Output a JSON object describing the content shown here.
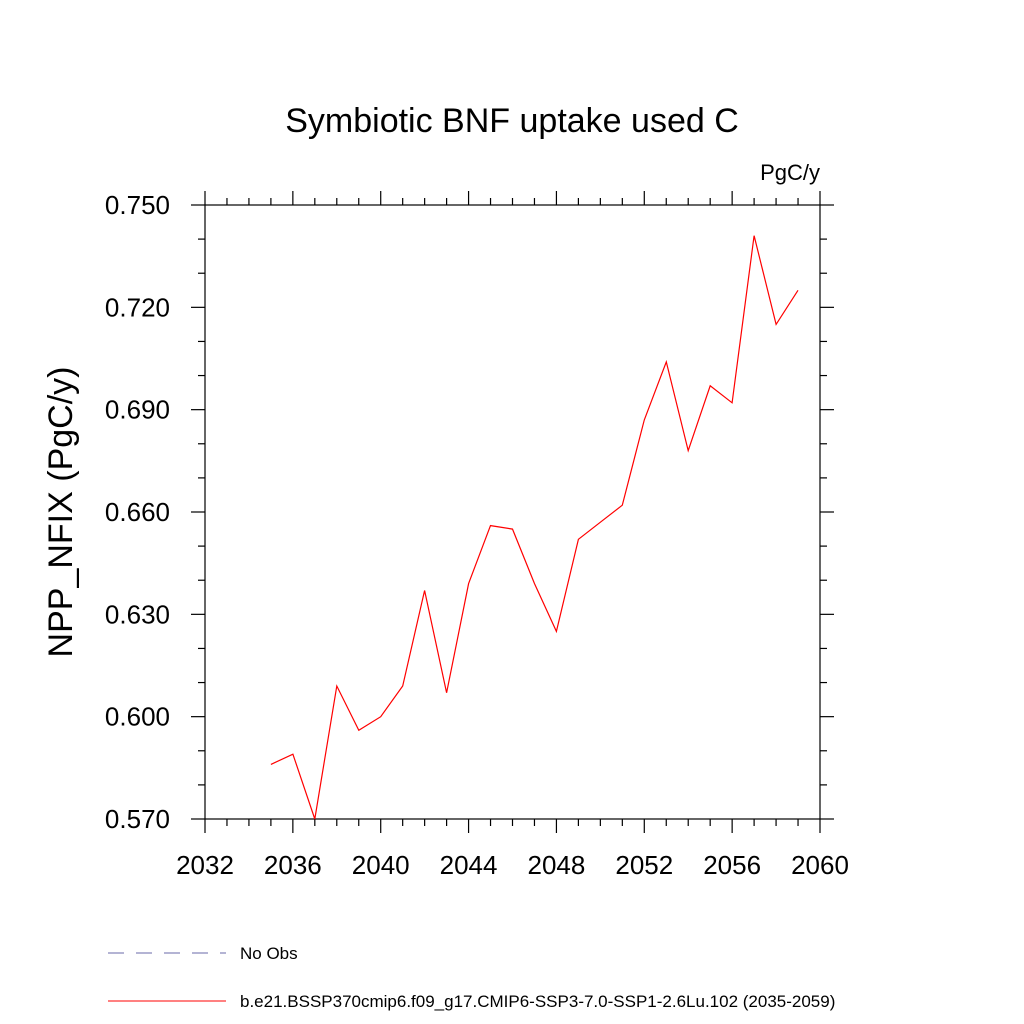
{
  "chart_data": {
    "type": "line",
    "title": "Symbiotic BNF uptake used C",
    "units_label": "PgC/y",
    "xlabel": "",
    "ylabel": "NPP_NFIX  (PgC/y)",
    "xlim": [
      2032,
      2060
    ],
    "ylim": [
      0.57,
      0.75
    ],
    "x_ticks": [
      2032,
      2036,
      2040,
      2044,
      2048,
      2052,
      2056,
      2060
    ],
    "y_ticks": [
      "0.570",
      "0.600",
      "0.630",
      "0.660",
      "0.690",
      "0.720",
      "0.750"
    ],
    "grid": false,
    "legend_position": "bottom-left",
    "legend": [
      {
        "label": "No Obs",
        "color": "#6a6aa8",
        "dash": "dashed"
      },
      {
        "label": "b.e21.BSSP370cmip6.f09_g17.CMIP6-SSP3-7.0-SSP1-2.6Lu.102 (2035-2059)",
        "color": "#ff0000",
        "dash": "solid"
      }
    ],
    "series": [
      {
        "name": "b.e21.BSSP370cmip6.f09_g17.CMIP6-SSP3-7.0-SSP1-2.6Lu.102 (2035-2059)",
        "color": "#ff0000",
        "x": [
          2035,
          2036,
          2037,
          2038,
          2039,
          2040,
          2041,
          2042,
          2043,
          2044,
          2045,
          2046,
          2047,
          2048,
          2049,
          2050,
          2051,
          2052,
          2053,
          2054,
          2055,
          2056,
          2057,
          2058,
          2059
        ],
        "y": [
          0.586,
          0.589,
          0.57,
          0.609,
          0.596,
          0.6,
          0.609,
          0.637,
          0.607,
          0.639,
          0.656,
          0.655,
          0.639,
          0.625,
          0.652,
          0.657,
          0.662,
          0.687,
          0.704,
          0.678,
          0.697,
          0.692,
          0.741,
          0.715,
          0.725
        ]
      }
    ]
  }
}
